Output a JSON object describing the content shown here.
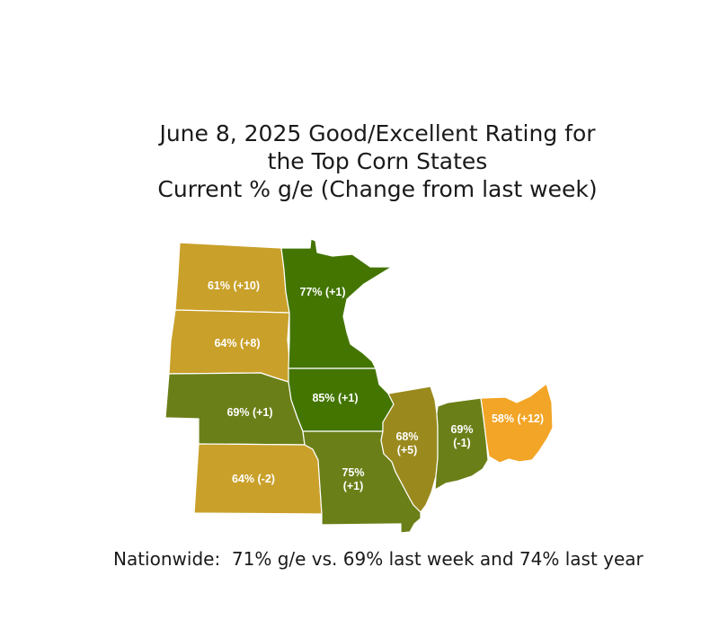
{
  "title": {
    "line1": "June 8, 2025 Good/Excellent Rating for",
    "line2": "the Top Corn States",
    "line3": "Current % g/e (Change from last week)"
  },
  "states": {
    "north_dakota": {
      "line1": "61% (+10)",
      "color": "#c9a02a"
    },
    "south_dakota": {
      "line1": "64% (+8)",
      "color": "#c9a02a"
    },
    "nebraska": {
      "line1": "69% (+1)",
      "color": "#6b7f18"
    },
    "kansas": {
      "line1": "64% (-2)",
      "color": "#c9a02a"
    },
    "minnesota": {
      "line1": "77% (+1)",
      "color": "#437500"
    },
    "iowa": {
      "line1": "85% (+1)",
      "color": "#437500"
    },
    "missouri": {
      "line1": "75%",
      "line2": "(+1)",
      "color": "#6b7f18"
    },
    "illinois": {
      "line1": "68%",
      "line2": "(+5)",
      "color": "#9a8a1e"
    },
    "indiana": {
      "line1": "69%",
      "line2": "(-1)",
      "color": "#6b7f18"
    },
    "ohio": {
      "line1": "58% (+12)",
      "color": "#f2a526"
    }
  },
  "footer": "Nationwide:  71% g/e vs. 69% last week and 74% last year"
}
